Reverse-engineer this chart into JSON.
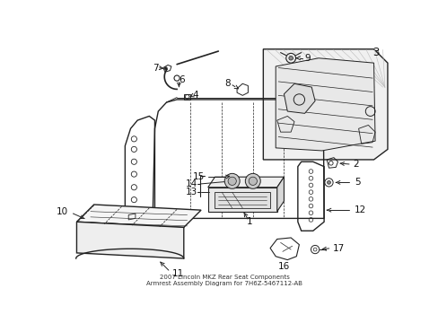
{
  "title": "2007 Lincoln MKZ Rear Seat Components\nArmrest Assembly Diagram for 7H6Z-5467112-AB",
  "bg_color": "#ffffff",
  "lc": "#222222",
  "fig_width": 4.89,
  "fig_height": 3.6,
  "dpi": 100
}
